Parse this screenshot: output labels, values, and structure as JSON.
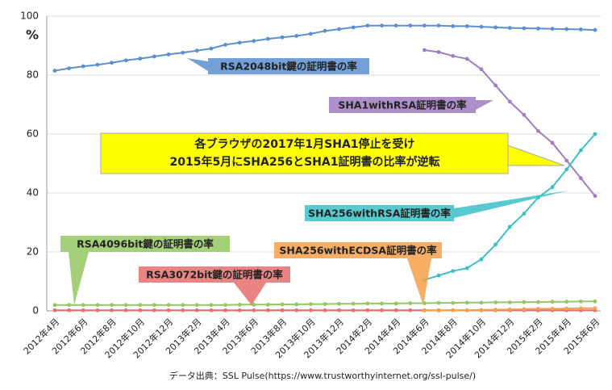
{
  "chart_data": {
    "type": "line",
    "y_unit": "%",
    "source": "データ出典：SSL Pulse(https://www.trustworthyinternet.org/ssl-pulse/)",
    "annotations": [
      "各ブラウザの2017年1月SHA1停止を受け",
      "2015年5月にSHA256とSHA1証明書の比率が逆転"
    ],
    "categories": [
      "2012年4月",
      null,
      "2012年6月",
      null,
      "2012年8月",
      null,
      "2012年10月",
      null,
      "2012年12月",
      null,
      "2013年2月",
      null,
      "2013年4月",
      null,
      "2013年6月",
      null,
      "2013年8月",
      null,
      "2013年10月",
      null,
      "2013年12月",
      null,
      "2014年2月",
      null,
      "2014年4月",
      null,
      "2014年6月",
      null,
      "2014年8月",
      null,
      "2014年10月",
      null,
      "2014年12月",
      null,
      "2015年2月",
      null,
      "2015年4月",
      null,
      "2015年6月"
    ],
    "ylim": [
      0,
      100
    ],
    "yticks": [
      0,
      20,
      40,
      60,
      80,
      100
    ],
    "grid": true,
    "series": [
      {
        "name": "RSA2048bit鍵の証明書の率",
        "color": "#5b8fd0",
        "values": [
          81.5,
          82.3,
          83,
          83.5,
          84.2,
          85,
          85.6,
          86.3,
          87,
          87.6,
          88.3,
          89,
          90.3,
          91,
          91.6,
          92.3,
          92.8,
          93.3,
          94,
          95,
          95.6,
          96.2,
          96.8,
          96.8,
          96.8,
          96.8,
          96.8,
          96.8,
          96.6,
          96.6,
          96.4,
          96.2,
          96,
          95.9,
          95.8,
          95.7,
          95.6,
          95.5,
          95.3
        ]
      },
      {
        "name": "SHA1withRSA証明書の率",
        "color": "#a07cc0",
        "values": [
          null,
          null,
          null,
          null,
          null,
          null,
          null,
          null,
          null,
          null,
          null,
          null,
          null,
          null,
          null,
          null,
          null,
          null,
          null,
          null,
          null,
          null,
          null,
          null,
          null,
          null,
          88.5,
          87.8,
          86.5,
          85.5,
          82,
          76.5,
          71,
          66.5,
          61,
          57,
          51,
          45,
          39
        ]
      },
      {
        "name": "SHA256withRSA証明書の率",
        "color": "#3bbfc6",
        "values": [
          null,
          null,
          null,
          null,
          null,
          null,
          null,
          null,
          null,
          null,
          null,
          null,
          null,
          null,
          null,
          null,
          null,
          null,
          null,
          null,
          null,
          null,
          null,
          null,
          null,
          null,
          10.5,
          12,
          13.5,
          14.5,
          17.5,
          22.5,
          28.5,
          33,
          38.5,
          42,
          48,
          54.5,
          60
        ]
      },
      {
        "name": "RSA4096bit鍵の証明書の率",
        "color": "#95c761",
        "values": [
          2,
          2,
          2,
          2,
          2,
          2,
          2,
          2,
          2,
          2,
          2,
          2,
          2,
          2.1,
          2.1,
          2.1,
          2.2,
          2.2,
          2.3,
          2.3,
          2.4,
          2.4,
          2.5,
          2.5,
          2.5,
          2.6,
          2.6,
          2.7,
          2.7,
          2.8,
          2.8,
          2.9,
          2.9,
          3,
          3,
          3.1,
          3.1,
          3.2,
          3.2
        ]
      },
      {
        "name": "RSA3072bit鍵の証明書の率",
        "color": "#e56f6f",
        "values": [
          0.2,
          0.2,
          0.2,
          0.2,
          0.2,
          0.2,
          0.2,
          0.2,
          0.2,
          0.2,
          0.2,
          0.2,
          0.2,
          0.2,
          0.2,
          0.2,
          0.2,
          0.2,
          0.2,
          0.2,
          0.2,
          0.2,
          0.2,
          0.2,
          0.2,
          0.2,
          0.2,
          0.2,
          0.2,
          0.2,
          0.2,
          0.2,
          0.2,
          0.2,
          0.2,
          0.2,
          0.2,
          0.2,
          0.2
        ]
      },
      {
        "name": "SHA256withECDSA証明書の率",
        "color": "#f5a04a",
        "values": [
          null,
          null,
          null,
          null,
          null,
          null,
          null,
          null,
          null,
          null,
          null,
          null,
          null,
          null,
          null,
          null,
          null,
          null,
          null,
          null,
          null,
          null,
          null,
          null,
          null,
          null,
          0.1,
          0.1,
          0.2,
          0.2,
          0.3,
          0.4,
          0.5,
          0.6,
          0.7,
          0.7,
          0.8,
          0.9,
          0.9
        ]
      }
    ]
  }
}
